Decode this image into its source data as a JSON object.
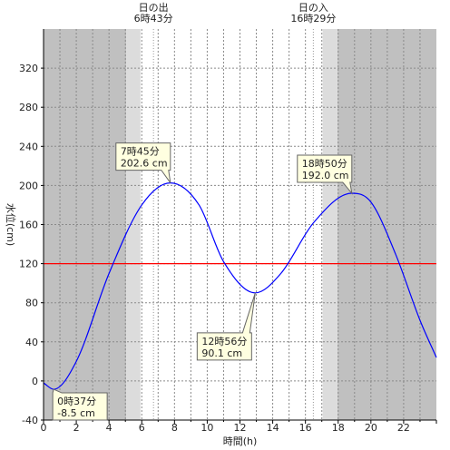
{
  "chart_data": {
    "type": "line",
    "title": "",
    "xlabel": "時間(h)",
    "ylabel": "水位(cm)",
    "xlim": [
      0,
      24
    ],
    "ylim": [
      -40,
      360
    ],
    "grid": true,
    "x_ticks": [
      0,
      2,
      4,
      6,
      8,
      10,
      12,
      14,
      16,
      18,
      20,
      22
    ],
    "y_ticks": [
      -40,
      0,
      40,
      80,
      120,
      160,
      200,
      240,
      280,
      320
    ],
    "reference_line": {
      "value": 120,
      "color": "#ff0000"
    },
    "series": [
      {
        "color": "#0000ff",
        "x": [
          0,
          0.617,
          2,
          4,
          6,
          7.75,
          9.5,
          11,
          12.933,
          14.5,
          16.5,
          18.833,
          20,
          21.5,
          23,
          24
        ],
        "y": [
          -2,
          -8.5,
          20,
          110,
          180,
          202.6,
          180,
          122,
          90.1,
          110,
          162,
          192.0,
          183,
          130,
          62,
          24
        ]
      }
    ],
    "shading": {
      "night_color": "#c0c0c0",
      "twilight_color": "#dcdcdc",
      "night": [
        [
          0,
          5.05
        ],
        [
          17.95,
          24
        ]
      ],
      "twilight": [
        [
          5.05,
          5.92
        ],
        [
          17.05,
          17.95
        ]
      ]
    },
    "sun_events": [
      {
        "label": "日の出",
        "time": "6時43分",
        "x": 6.717
      },
      {
        "label": "日の入",
        "time": "16時29分",
        "x": 16.483
      }
    ],
    "annotations": [
      {
        "time": "0時37分",
        "value": "-8.5 cm",
        "x": 0.617,
        "y": -8.5
      },
      {
        "time": "7時45分",
        "value": "202.6 cm",
        "x": 7.75,
        "y": 202.6
      },
      {
        "time": "12時56分",
        "value": "90.1 cm",
        "x": 12.933,
        "y": 90.1
      },
      {
        "time": "18時50分",
        "value": "192.0 cm",
        "x": 18.833,
        "y": 192.0
      }
    ]
  }
}
